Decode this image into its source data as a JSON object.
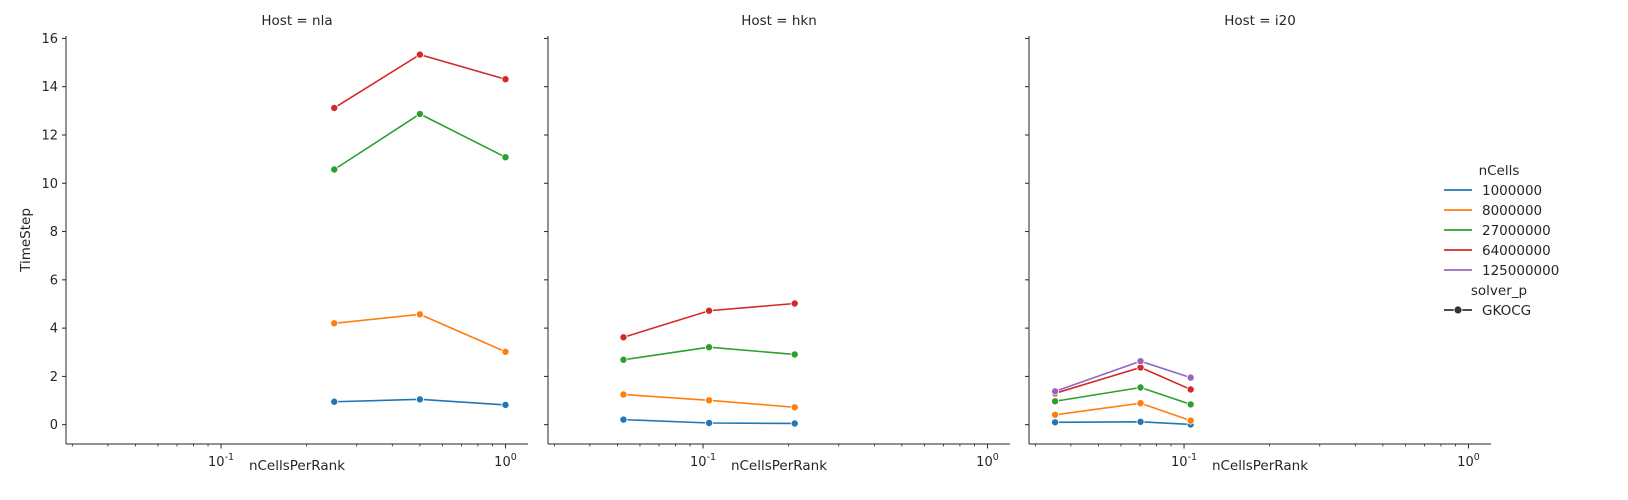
{
  "chart_data": {
    "type": "line",
    "facet_variable": "Host",
    "facets": [
      {
        "title": "Host = nla",
        "series": [
          {
            "name": "1000000",
            "x": [
              0.25,
              0.5,
              1.0
            ],
            "y": [
              0.95,
              1.05,
              0.82
            ]
          },
          {
            "name": "8000000",
            "x": [
              0.25,
              0.5,
              1.0
            ],
            "y": [
              4.2,
              4.57,
              3.02
            ]
          },
          {
            "name": "27000000",
            "x": [
              0.25,
              0.5,
              1.0
            ],
            "y": [
              10.57,
              12.87,
              11.08
            ]
          },
          {
            "name": "64000000",
            "x": [
              0.25,
              0.5,
              1.0
            ],
            "y": [
              13.12,
              15.33,
              14.31
            ]
          }
        ]
      },
      {
        "title": "Host = hkn",
        "series": [
          {
            "name": "1000000",
            "x": [
              0.0525,
              0.105,
              0.21
            ],
            "y": [
              0.21,
              0.07,
              0.05
            ]
          },
          {
            "name": "8000000",
            "x": [
              0.0525,
              0.105,
              0.21
            ],
            "y": [
              1.25,
              1.01,
              0.72
            ]
          },
          {
            "name": "27000000",
            "x": [
              0.0525,
              0.105,
              0.21
            ],
            "y": [
              2.69,
              3.21,
              2.91
            ]
          },
          {
            "name": "64000000",
            "x": [
              0.0525,
              0.105,
              0.21
            ],
            "y": [
              3.62,
              4.72,
              5.02
            ]
          }
        ]
      },
      {
        "title": "Host = i20",
        "series": [
          {
            "name": "1000000",
            "x": [
              0.0352,
              0.0703,
              0.1055
            ],
            "y": [
              0.1,
              0.12,
              0.01
            ]
          },
          {
            "name": "8000000",
            "x": [
              0.0352,
              0.0703,
              0.1055
            ],
            "y": [
              0.41,
              0.89,
              0.17
            ]
          },
          {
            "name": "27000000",
            "x": [
              0.0352,
              0.0703,
              0.1055
            ],
            "y": [
              0.97,
              1.54,
              0.84
            ]
          },
          {
            "name": "64000000",
            "x": [
              0.0352,
              0.0703,
              0.1055
            ],
            "y": [
              1.3,
              2.37,
              1.46
            ]
          },
          {
            "name": "125000000",
            "x": [
              0.0352,
              0.0703,
              0.1055
            ],
            "y": [
              1.38,
              2.63,
              1.95
            ]
          }
        ]
      }
    ],
    "xlabel": "nCellsPerRank",
    "ylabel": "TimeStep",
    "xscale": "log",
    "xlim": [
      0.0285,
      1.2
    ],
    "ylim": [
      -0.8,
      16.1
    ],
    "x_ticks": [
      0.1,
      1.0
    ],
    "x_tick_labels": [
      "10^-1",
      "10^0"
    ],
    "y_ticks": [
      0,
      2,
      4,
      6,
      8,
      10,
      12,
      14,
      16
    ],
    "grid": false,
    "shared_y": true,
    "legend": {
      "placement": "right",
      "hue_title": "nCells",
      "hue_entries": [
        {
          "label": "1000000",
          "color": "#1f77b4"
        },
        {
          "label": "8000000",
          "color": "#ff7f0e"
        },
        {
          "label": "27000000",
          "color": "#2ca02c"
        },
        {
          "label": "64000000",
          "color": "#d62728"
        },
        {
          "label": "125000000",
          "color": "#9467bd"
        }
      ],
      "style_title": "solver_p",
      "style_entries": [
        {
          "label": "GKOCG",
          "color": "#333333"
        }
      ]
    }
  }
}
